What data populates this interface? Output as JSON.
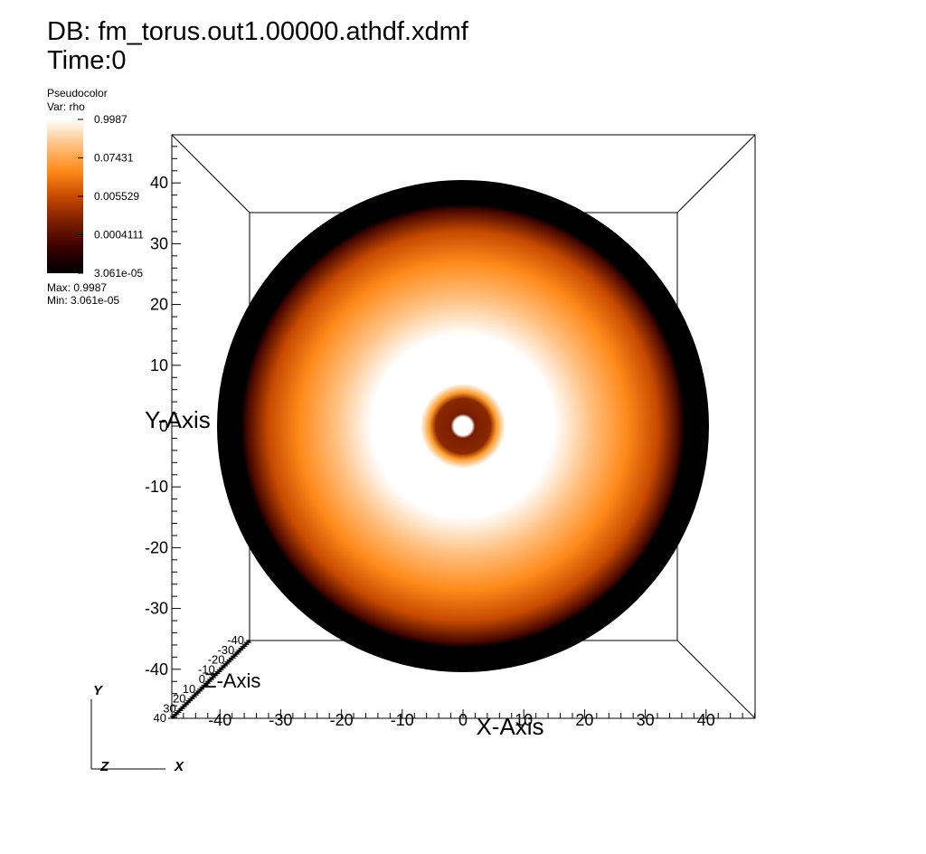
{
  "header": {
    "db_label": "DB: fm_torus.out1.00000.athdf.xdmf",
    "time_label": "Time:0"
  },
  "legend": {
    "plot_type": "Pseudocolor",
    "var_label": "Var: rho",
    "ticks": [
      "0.9987",
      "0.07431",
      "0.005529",
      "0.0004111",
      "3.061e-05"
    ],
    "max_label": "Max:  0.9987",
    "min_label": "Min:  3.061e-05",
    "colormap": [
      "#000000",
      "#3a0000",
      "#7a1d00",
      "#c84a00",
      "#ff8a1a",
      "#ffc080",
      "#ffffff"
    ]
  },
  "triad": {
    "y": "Y",
    "z": "Z",
    "x": "X"
  },
  "chart_data": {
    "type": "heatmap",
    "title": "DB: fm_torus.out1.00000.athdf.xdmf",
    "subtitle": "Time:0",
    "variable": "rho",
    "xlabel": "X-Axis",
    "ylabel": "Y-Axis",
    "zlabel": "Z-Axis",
    "x_ticks": [
      "-40",
      "-30",
      "-20",
      "-10",
      "0",
      "10",
      "20",
      "30",
      "40"
    ],
    "y_ticks": [
      "40",
      "30",
      "20",
      "10",
      "0",
      "-10",
      "-20",
      "-30",
      "-40"
    ],
    "z_ticks": [
      "-40",
      "-30",
      "-20",
      "-10",
      "0",
      "10",
      "20",
      "30",
      "40"
    ],
    "xlim": [
      -48,
      48
    ],
    "ylim": [
      -48,
      48
    ],
    "value_range": [
      3.061e-05,
      0.9987
    ],
    "scale": "log",
    "radial_profile": [
      {
        "r": 0.0,
        "color": "#ffffff"
      },
      {
        "r": 1.5,
        "color": "#ffffff"
      },
      {
        "r": 2.0,
        "color": "#7a1d00"
      },
      {
        "r": 4.5,
        "color": "#8a2800"
      },
      {
        "r": 5.5,
        "color": "#ff9a2a"
      },
      {
        "r": 7.0,
        "color": "#ffffff"
      },
      {
        "r": 15.0,
        "color": "#ffffff"
      },
      {
        "r": 21.0,
        "color": "#ffc080"
      },
      {
        "r": 27.0,
        "color": "#ff8a1a"
      },
      {
        "r": 32.0,
        "color": "#c84a00"
      },
      {
        "r": 35.5,
        "color": "#4a0800"
      },
      {
        "r": 36.5,
        "color": "#000000"
      },
      {
        "r": 40.5,
        "color": "#000000"
      }
    ]
  }
}
